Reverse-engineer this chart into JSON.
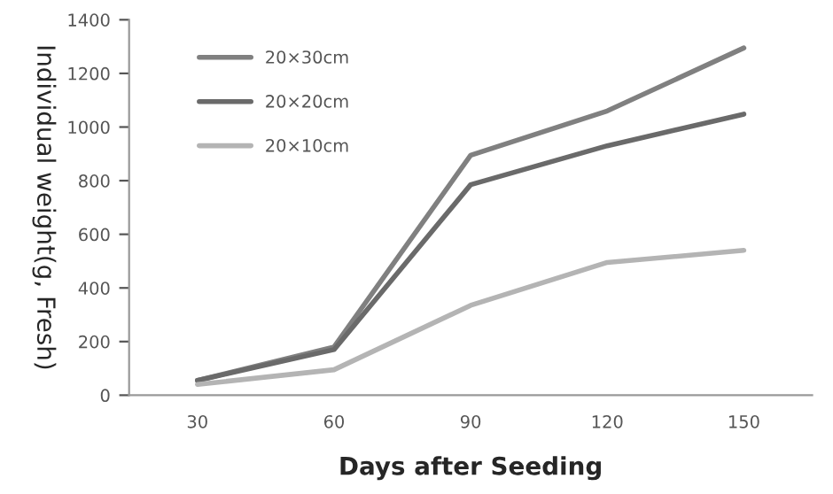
{
  "chart_data": {
    "type": "line",
    "xlabel": "Days after Seeding",
    "ylabel": "Individual weight(g, Fresh)",
    "categories": [
      "30",
      "60",
      "90",
      "120",
      "150"
    ],
    "series": [
      {
        "name": "20×30cm",
        "color": "#808080",
        "values": [
          55,
          180,
          895,
          1060,
          1295
        ]
      },
      {
        "name": "20×20cm",
        "color": "#6a6a6a",
        "values": [
          55,
          170,
          785,
          930,
          1048
        ]
      },
      {
        "name": "20×10cm",
        "color": "#b4b4b4",
        "values": [
          40,
          95,
          335,
          495,
          540
        ]
      }
    ],
    "ylim": [
      0,
      1400
    ],
    "yticks": [
      0,
      200,
      400,
      600,
      800,
      1000,
      1200,
      1400
    ],
    "grid": false,
    "legend": "top left",
    "marker": "none",
    "line_style": "solid"
  }
}
